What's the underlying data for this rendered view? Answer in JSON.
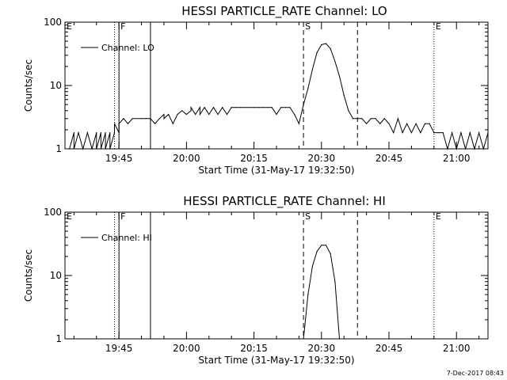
{
  "timestamp": "7-Dec-2017 08:43",
  "chart_data": [
    {
      "type": "line",
      "title": "HESSI PARTICLE_RATE Channel: LO",
      "xlabel": "Start Time (31-May-17 19:32:50)",
      "ylabel": "Counts/sec",
      "y_scale": "log",
      "ylim": [
        1,
        100
      ],
      "y_ticks": [
        1,
        10,
        100
      ],
      "y_tick_labels": [
        "1",
        "10",
        "100"
      ],
      "xlim": [
        "19:33",
        "21:07"
      ],
      "x_ticks": [
        "19:45",
        "20:00",
        "20:15",
        "20:30",
        "20:45",
        "21:00"
      ],
      "legend": {
        "label": "Channel: LO",
        "placement": "top-left"
      },
      "markers": [
        {
          "label": "E",
          "time": "19:33",
          "style": "none"
        },
        {
          "label": "",
          "time": "19:44",
          "style": "dotted"
        },
        {
          "label": "F",
          "time": "19:45",
          "style": "solid"
        },
        {
          "label": "",
          "time": "19:52",
          "style": "solid"
        },
        {
          "label": "S",
          "time": "20:26",
          "style": "dashed"
        },
        {
          "label": "",
          "time": "20:38",
          "style": "dashed"
        },
        {
          "label": "E",
          "time": "20:55",
          "style": "dotted"
        },
        {
          "label": "",
          "time": "21:07",
          "style": "dotted"
        }
      ],
      "series": [
        {
          "values_x": [
            "19:34",
            "19:35",
            "19:35",
            "19:36",
            "19:37",
            "19:37",
            "19:38",
            "19:39",
            "19:40",
            "19:40",
            "19:41",
            "19:41",
            "19:42",
            "19:42",
            "19:43",
            "19:43",
            "19:44",
            "19:44",
            "19:45",
            "19:45",
            "19:46",
            "19:47",
            "19:48",
            "19:50",
            "19:51",
            "19:52",
            "19:53",
            "19:54",
            "19:55",
            "19:55",
            "19:56",
            "19:57",
            "19:58",
            "19:59",
            "20:00",
            "20:01",
            "20:01",
            "20:02",
            "20:03",
            "20:03",
            "20:04",
            "20:05",
            "20:06",
            "20:07",
            "20:08",
            "20:09",
            "20:10",
            "20:10",
            "20:11",
            "20:12",
            "20:13",
            "20:14",
            "20:15",
            "20:16",
            "20:17",
            "20:18",
            "20:19",
            "20:20",
            "20:21",
            "20:22",
            "20:23",
            "20:24",
            "20:25",
            "20:26",
            "20:27",
            "20:28",
            "20:29",
            "20:30",
            "20:31",
            "20:32",
            "20:33",
            "20:34",
            "20:35",
            "20:36",
            "20:37",
            "20:38",
            "20:39",
            "20:40",
            "20:41",
            "20:42",
            "20:43",
            "20:44",
            "20:45",
            "20:46",
            "20:47",
            "20:48",
            "20:49",
            "20:50",
            "20:51",
            "20:52",
            "20:53",
            "20:54",
            "20:55",
            "20:56",
            "20:57",
            "20:58",
            "20:59",
            "21:00",
            "21:01",
            "21:02",
            "21:03",
            "21:04",
            "21:05",
            "21:06",
            "21:07"
          ],
          "values": [
            1,
            1.8,
            1,
            1.8,
            1,
            1,
            1.8,
            1,
            1.8,
            1,
            1.8,
            1,
            1.8,
            1,
            1.8,
            1,
            1.8,
            2.5,
            1.8,
            2.5,
            3,
            2.5,
            3,
            3,
            3,
            3,
            2.5,
            3,
            3.5,
            3,
            3.5,
            2.5,
            3.5,
            4,
            3.5,
            4,
            4.5,
            3.5,
            4.5,
            3.5,
            4.5,
            3.5,
            4.5,
            3.5,
            4.5,
            3.5,
            4.5,
            4.5,
            4.5,
            4.5,
            4.5,
            4.5,
            4.5,
            4.5,
            4.5,
            4.5,
            4.5,
            3.5,
            4.5,
            4.5,
            4.5,
            3.5,
            2.5,
            5,
            9,
            18,
            33,
            44,
            46,
            38,
            24,
            14,
            7,
            4,
            3,
            3,
            3,
            2.5,
            3,
            3,
            2.5,
            3,
            2.5,
            1.8,
            3,
            1.8,
            2.5,
            1.8,
            2.5,
            1.8,
            2.5,
            2.5,
            1.8,
            1.8,
            1.8,
            1,
            1.8,
            1,
            1.8,
            1,
            1.8,
            1,
            1.8,
            1,
            1.8
          ]
        }
      ]
    },
    {
      "type": "line",
      "title": "HESSI PARTICLE_RATE Channel: HI",
      "xlabel": "Start Time (31-May-17 19:32:50)",
      "ylabel": "Counts/sec",
      "y_scale": "log",
      "ylim": [
        1,
        100
      ],
      "y_ticks": [
        1,
        10,
        100
      ],
      "y_tick_labels": [
        "1",
        "10",
        "100"
      ],
      "xlim": [
        "19:33",
        "21:07"
      ],
      "x_ticks": [
        "19:45",
        "20:00",
        "20:15",
        "20:30",
        "20:45",
        "21:00"
      ],
      "legend": {
        "label": "Channel: HI",
        "placement": "top-left"
      },
      "markers": [
        {
          "label": "E",
          "time": "19:33",
          "style": "none"
        },
        {
          "label": "",
          "time": "19:44",
          "style": "dotted"
        },
        {
          "label": "F",
          "time": "19:45",
          "style": "solid"
        },
        {
          "label": "",
          "time": "19:52",
          "style": "solid"
        },
        {
          "label": "S",
          "time": "20:26",
          "style": "dashed"
        },
        {
          "label": "",
          "time": "20:38",
          "style": "dashed"
        },
        {
          "label": "E",
          "time": "20:55",
          "style": "dotted"
        },
        {
          "label": "",
          "time": "21:07",
          "style": "dotted"
        }
      ],
      "series": [
        {
          "values_x": [
            "20:26",
            "20:27",
            "20:28",
            "20:29",
            "20:30",
            "20:31",
            "20:32",
            "20:33",
            "20:34"
          ],
          "values": [
            1,
            5,
            14,
            24,
            30,
            30,
            22,
            8,
            1
          ]
        }
      ]
    }
  ]
}
